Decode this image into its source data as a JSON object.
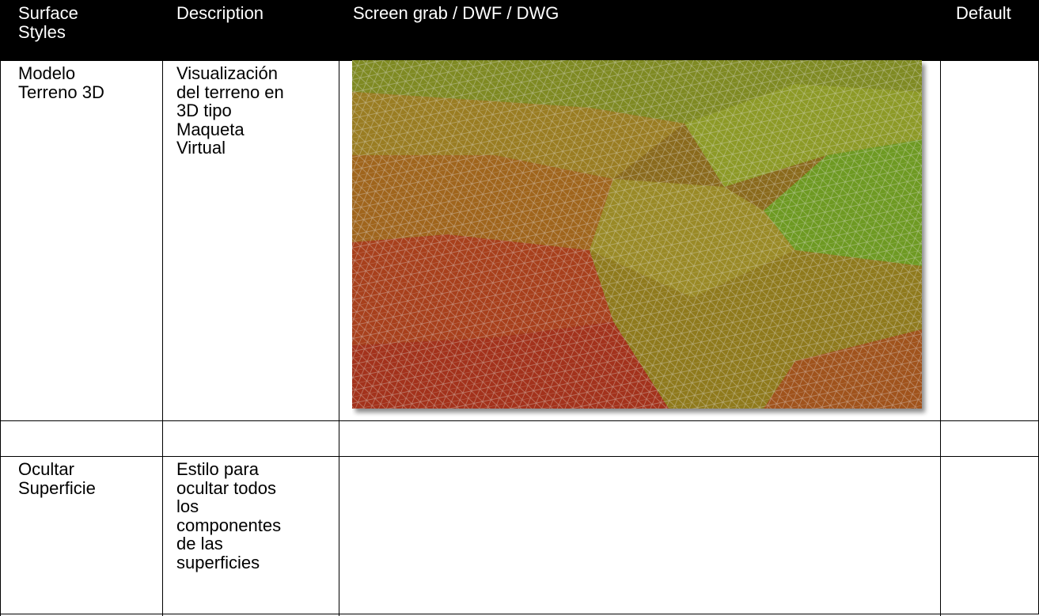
{
  "table": {
    "header": {
      "style": [
        "Surface",
        "Styles"
      ],
      "description": [
        "Description"
      ],
      "screen": [
        "Screen grab / DWF / DWG"
      ],
      "default": [
        "Default"
      ]
    },
    "rows": [
      {
        "style": [
          "Modelo",
          "Terreno 3D"
        ],
        "description": [
          "Visualización",
          "del terreno en",
          "3D tipo",
          "Maqueta",
          "Virtual"
        ]
      },
      {
        "style": [
          "Ocultar",
          "Superficie"
        ],
        "description": [
          "Estilo para",
          "ocultar todos",
          "los",
          "componentes",
          "de las",
          "superficies"
        ]
      }
    ]
  }
}
